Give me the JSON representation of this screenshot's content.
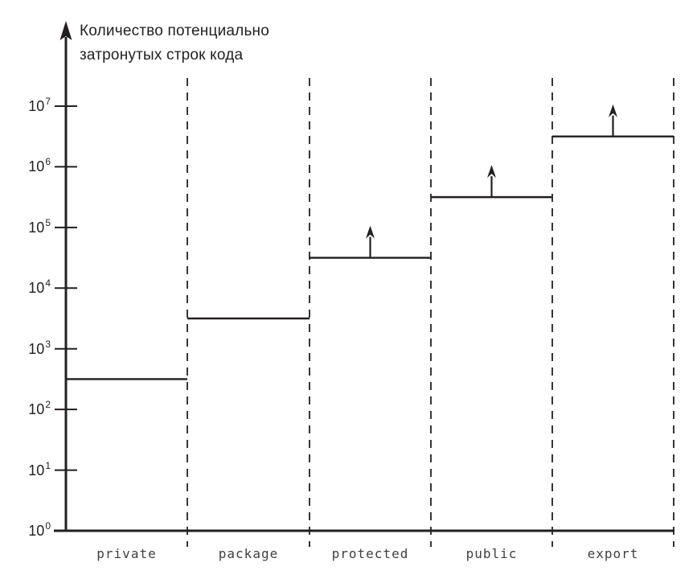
{
  "title": {
    "line1": "Количество потенциально",
    "line2": "затронутых строк кода"
  },
  "chart_data": {
    "type": "step",
    "title": "",
    "ylabel": "Количество потенциально затронутых строк кода",
    "xlabel": "",
    "y_scale": "log",
    "ylim": [
      1,
      10000000
    ],
    "open_ended_top_axis": true,
    "y_tick_base": "10",
    "y_tick_exponents": [
      0,
      1,
      2,
      3,
      4,
      5,
      6,
      7
    ],
    "categories": [
      "private",
      "package",
      "protected",
      "public",
      "export"
    ],
    "series": [
      {
        "name": "потенциально затронутые строки кода",
        "values_log10": [
          2.5,
          3.5,
          4.5,
          5.5,
          6.5
        ],
        "values_approx": [
          300,
          3000,
          30000,
          300000,
          3000000
        ],
        "unbounded_above": [
          false,
          false,
          true,
          true,
          true
        ]
      }
    ],
    "grid": "off",
    "legend": "none",
    "separators": "dashed vertical lines between categories"
  },
  "colors": {
    "ink": "#231f20",
    "category_label": "#3f3f3f",
    "background": "#ffffff"
  }
}
